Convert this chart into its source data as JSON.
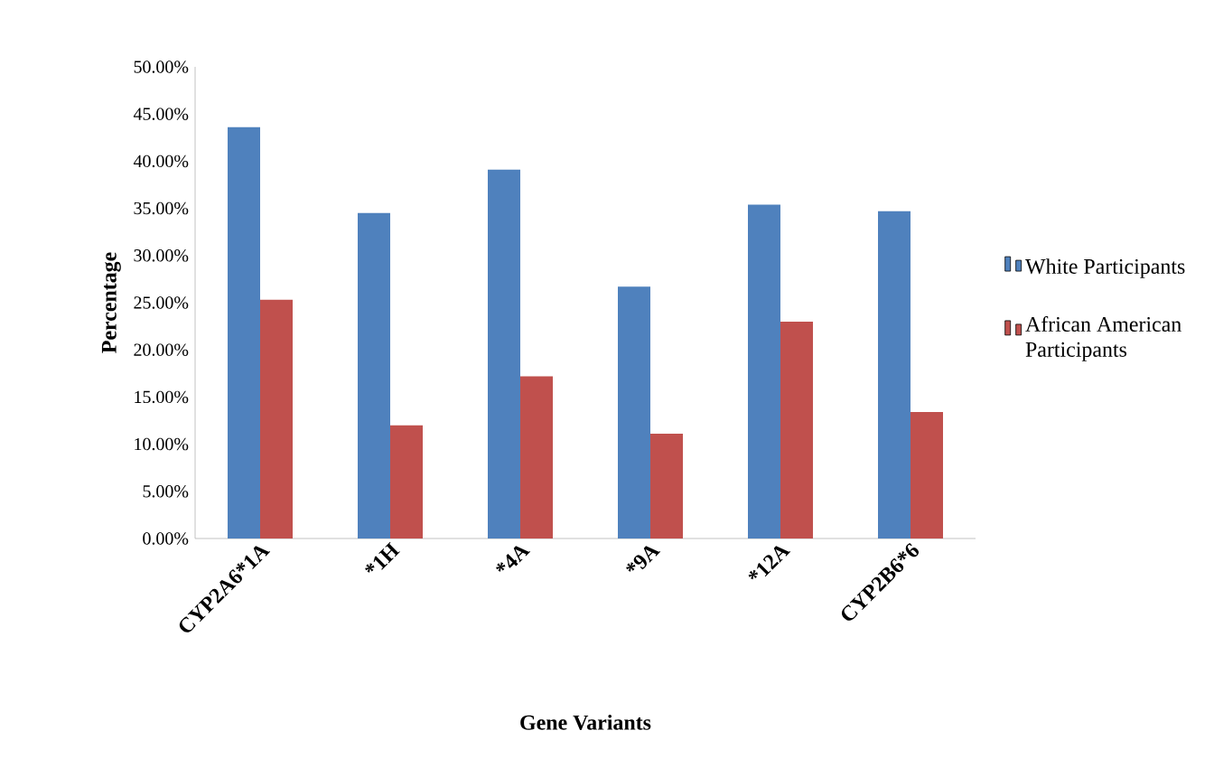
{
  "chart_data": {
    "type": "bar",
    "xlabel": "Gene Variants",
    "ylabel": "Percentage",
    "categories": [
      "CYP2A6*1A",
      "*1H",
      "*4A",
      "*9A",
      "*12A",
      "CYP2B6*6"
    ],
    "series": [
      {
        "name": "White Participants",
        "color": "#4f81bd",
        "values": [
          43.6,
          34.5,
          39.1,
          26.7,
          35.4,
          34.7
        ]
      },
      {
        "name": "African American Participants",
        "color": "#c0504d",
        "values": [
          25.3,
          12.0,
          17.2,
          11.1,
          23.0,
          13.4
        ]
      }
    ],
    "ylim": [
      0,
      50
    ],
    "yticks": [
      {
        "value": 0,
        "label": "0.00%"
      },
      {
        "value": 5,
        "label": "5.00%"
      },
      {
        "value": 10,
        "label": "10.00%"
      },
      {
        "value": 15,
        "label": "15.00%"
      },
      {
        "value": 20,
        "label": "20.00%"
      },
      {
        "value": 25,
        "label": "25.00%"
      },
      {
        "value": 30,
        "label": "30.00%"
      },
      {
        "value": 35,
        "label": "35.00%"
      },
      {
        "value": 40,
        "label": "40.00%"
      },
      {
        "value": 45,
        "label": "45.00%"
      },
      {
        "value": 50,
        "label": "50.00%"
      }
    ],
    "grid": false,
    "legend": "right"
  }
}
